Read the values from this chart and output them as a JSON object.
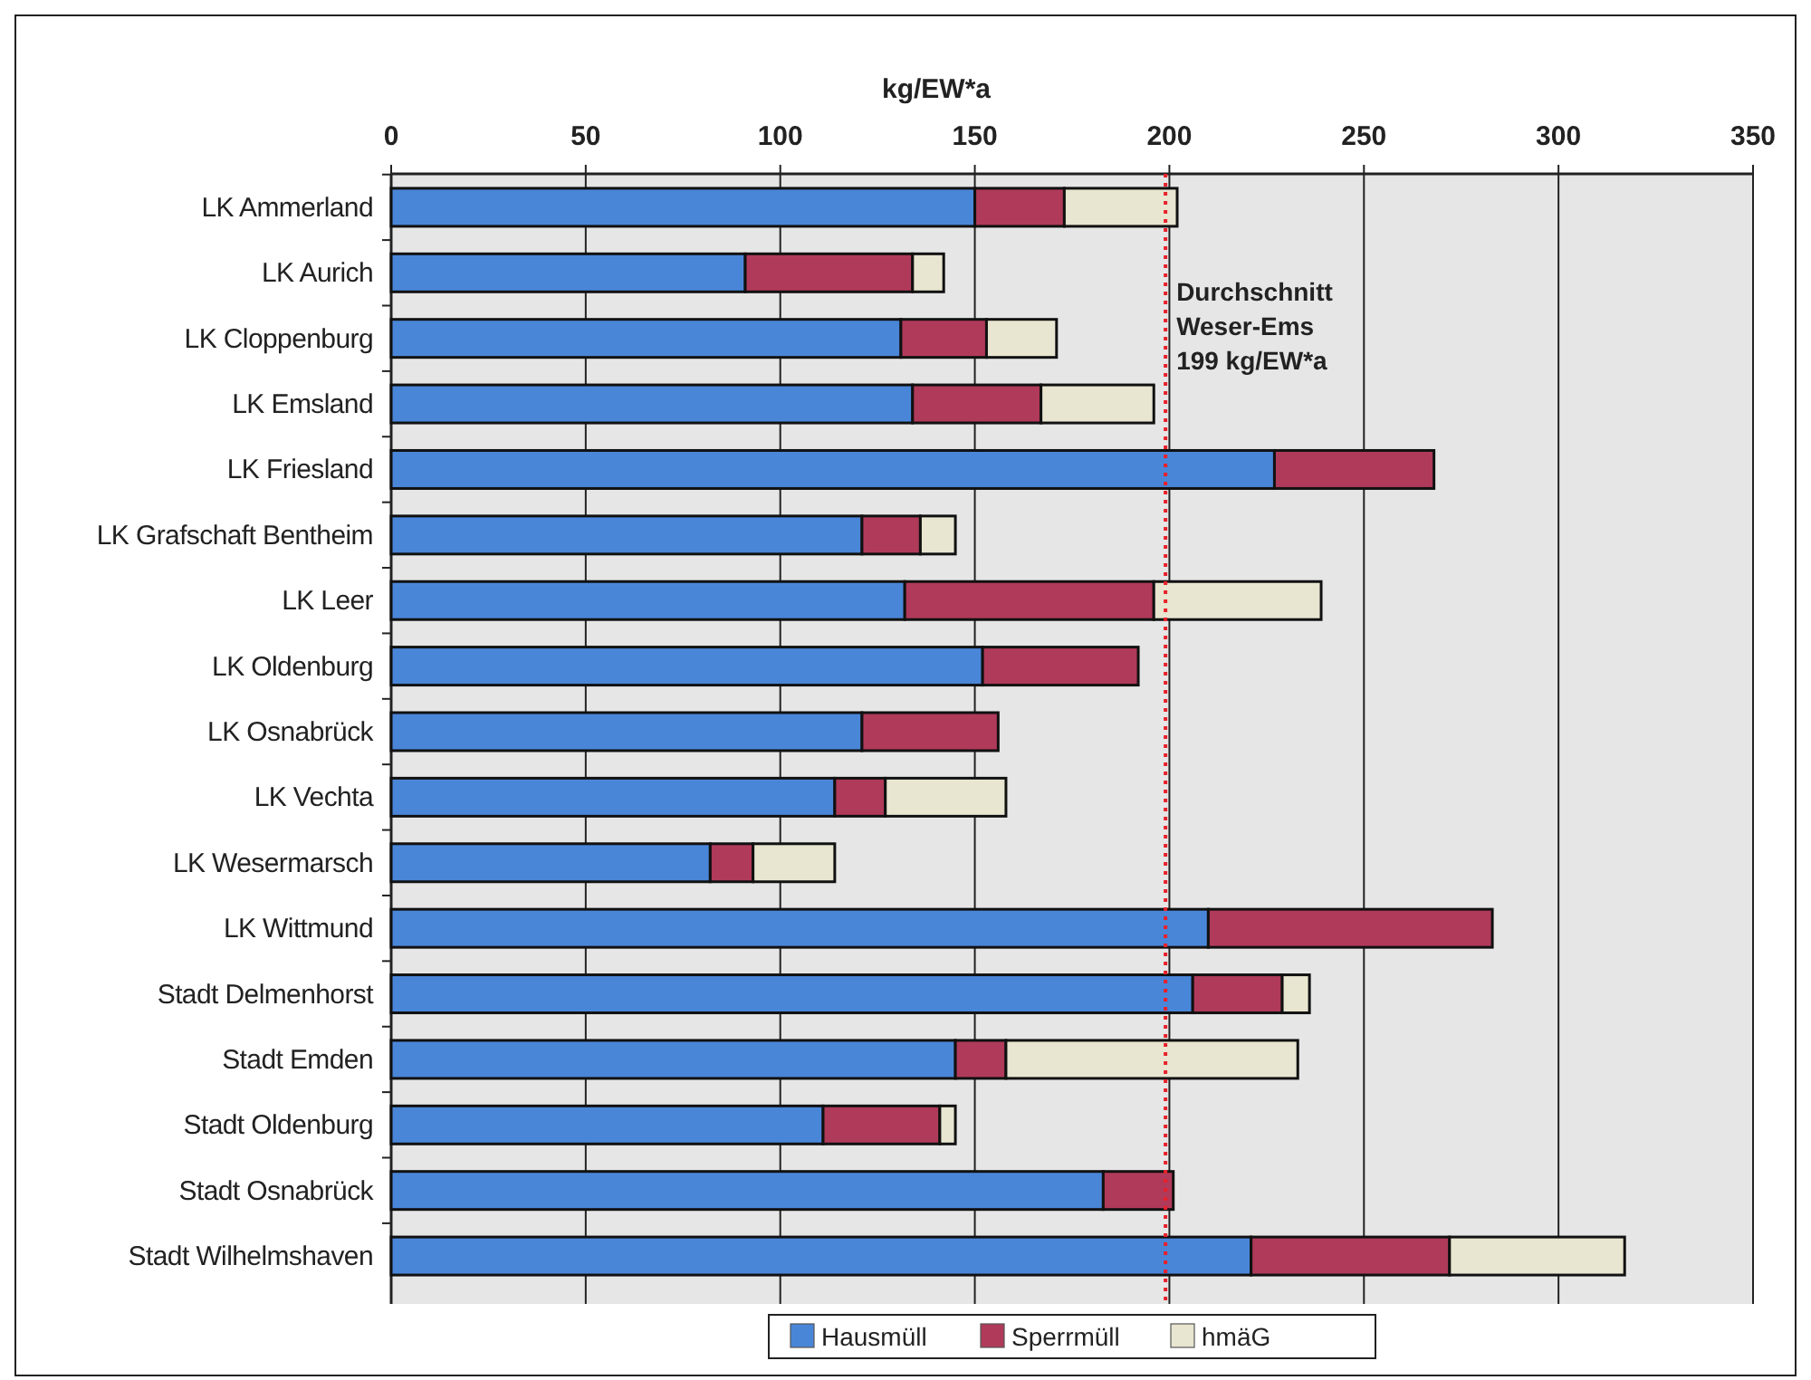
{
  "chart_data": {
    "type": "bar",
    "orientation": "horizontal",
    "stacked": true,
    "xlabel": "kg/EW*a",
    "categories": [
      "LK Ammerland",
      "LK Aurich",
      "LK Cloppenburg",
      "LK Emsland",
      "LK Friesland",
      "LK Grafschaft Bentheim",
      "LK Leer",
      "LK Oldenburg",
      "LK Osnabrück",
      "LK Vechta",
      "LK Wesermarsch",
      "LK Wittmund",
      "Stadt Delmenhorst",
      "Stadt Emden",
      "Stadt Oldenburg",
      "Stadt Osnabrück",
      "Stadt Wilhelmshaven"
    ],
    "series": [
      {
        "name": "Hausmüll",
        "color": "#4a86d8",
        "values": [
          150,
          91,
          131,
          134,
          227,
          121,
          132,
          152,
          121,
          114,
          82,
          210,
          206,
          145,
          111,
          183,
          221
        ]
      },
      {
        "name": "Sperrmüll",
        "color": "#b03a5a",
        "values": [
          23,
          43,
          22,
          33,
          41,
          15,
          64,
          40,
          35,
          13,
          11,
          73,
          23,
          13,
          30,
          18,
          51
        ]
      },
      {
        "name": "hmäG",
        "color": "#e8e5d0",
        "values": [
          29,
          8,
          18,
          29,
          null,
          9,
          43,
          null,
          null,
          31,
          21,
          null,
          7,
          75,
          4,
          null,
          45
        ]
      }
    ],
    "xlim": [
      0,
      350
    ],
    "xticks": [
      0,
      50,
      100,
      150,
      200,
      250,
      300,
      350
    ],
    "grid": "x",
    "legend": "bottom",
    "ref_lines": [
      {
        "axis": "x",
        "value": 199,
        "label": "Durchschnitt Weser-Ems 199 kg/EW*a",
        "color": "#e8202a",
        "line_style": "dotted"
      }
    ]
  }
}
